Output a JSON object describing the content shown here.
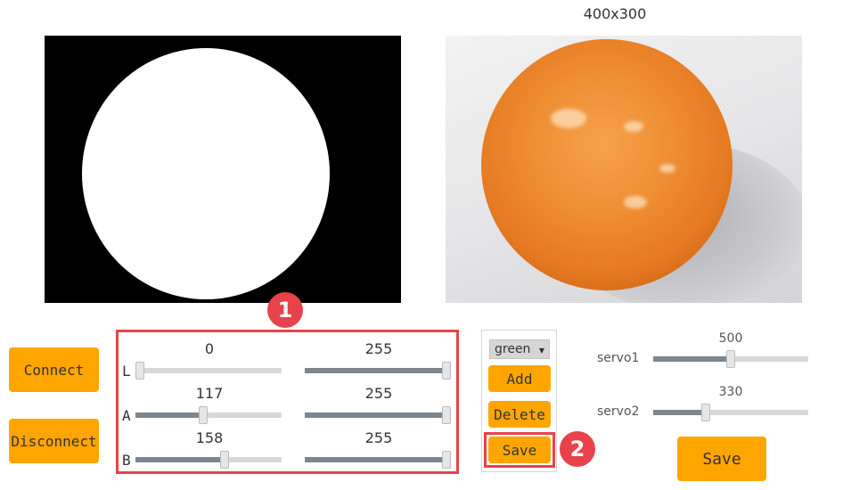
{
  "camera": {
    "resolution_label": "400x300"
  },
  "connection": {
    "connect_label": "Connect",
    "disconnect_label": "Disconnect"
  },
  "badges": {
    "threshold_marker": "1",
    "save_marker": "2"
  },
  "lab_thresholds": {
    "L": {
      "label": "L",
      "min": 0,
      "max": 255
    },
    "A": {
      "label": "A",
      "min": 117,
      "max": 255
    },
    "B": {
      "label": "B",
      "min": 158,
      "max": 255
    },
    "range_max": 255
  },
  "color_panel": {
    "selected_color": "green",
    "add_label": "Add",
    "delete_label": "Delete",
    "save_label": "Save"
  },
  "servos": {
    "servo1": {
      "label": "servo1",
      "value": 500,
      "max": 1000
    },
    "servo2": {
      "label": "servo2",
      "value": 330,
      "max": 1000
    },
    "save_label": "Save"
  },
  "colors": {
    "accent": "#ffa500",
    "highlight": "#e8434a",
    "slider_fill": "#7d8691"
  }
}
